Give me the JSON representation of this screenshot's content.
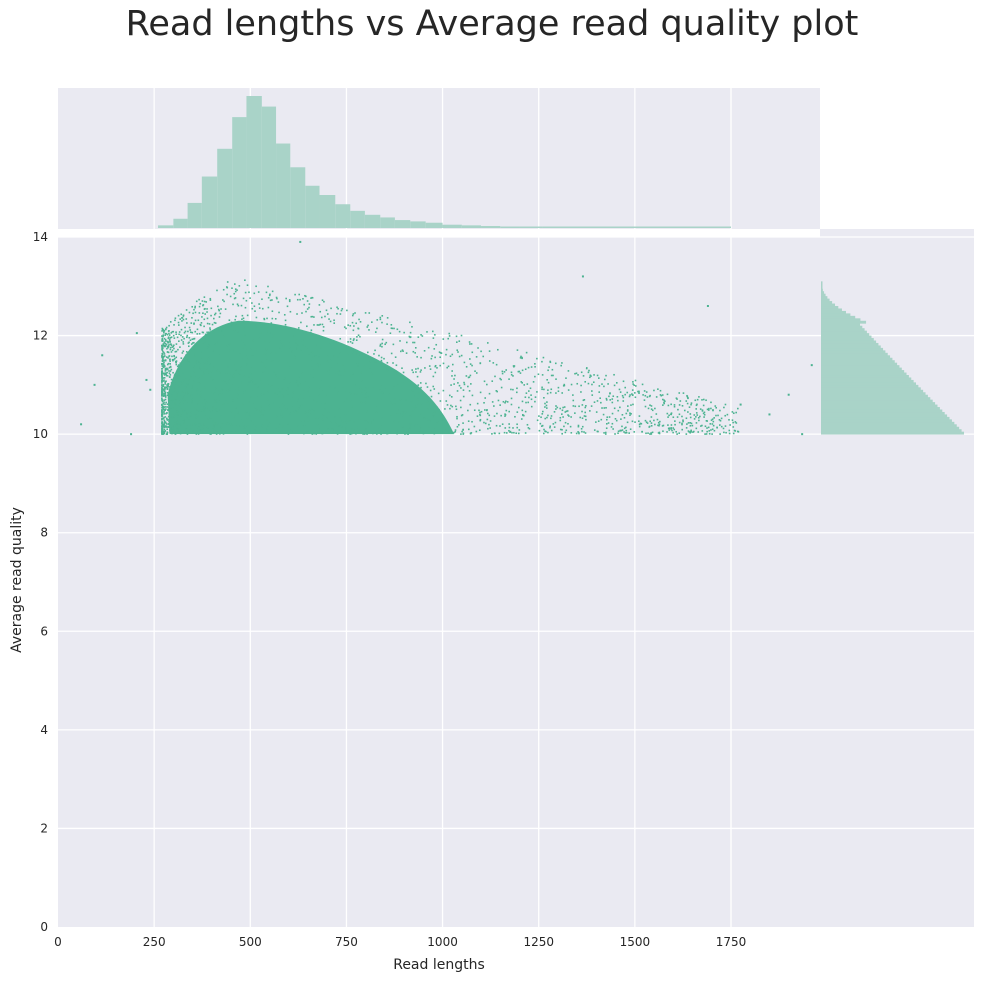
{
  "title": "Read lengths vs Average read quality plot",
  "colors": {
    "background": "#EAEAF2",
    "grid": "#FFFFFF",
    "scatter": "#4CB391",
    "histogram": "#A9D3C8",
    "text": "#262626"
  },
  "chart_data": {
    "type": "scatter",
    "subtype": "jointplot with marginal histograms",
    "title": "Read lengths vs Average read quality plot",
    "xlabel": "Read lengths",
    "ylabel": "Average read quality",
    "xlim": [
      0,
      2390
    ],
    "ylim": [
      0,
      14.4
    ],
    "xticks": [
      0,
      250,
      500,
      750,
      1000,
      1250,
      1500,
      1750
    ],
    "xtick_labels": [
      "0",
      "250",
      "500",
      "750",
      "1000",
      "1250",
      "1500",
      "1750"
    ],
    "yticks": [
      0,
      2,
      4,
      6,
      8,
      10,
      12,
      14
    ],
    "ytick_labels": [
      "0",
      "2",
      "4",
      "6",
      "8",
      "10",
      "12",
      "14"
    ],
    "grid": true,
    "legend": null,
    "scatter_summary": {
      "x_range": [
        60,
        1990
      ],
      "y_range": [
        10.0,
        13.9
      ],
      "dense_core_x": [
        280,
        1000
      ],
      "dense_core_y": [
        10.0,
        12.3
      ],
      "peak_density_x": 470,
      "notes": "Dense cloud of points with quality >= 10; sparse tail to ~1990 bp; isolated outliers at lengths 60-200"
    },
    "top_histogram": {
      "variable": "Read lengths",
      "bin_edges": [
        260,
        300,
        337,
        374,
        414,
        453,
        490,
        530,
        567,
        604,
        643,
        680,
        721,
        760,
        798,
        838,
        876,
        916,
        956,
        1000,
        1050,
        1100,
        1150,
        1200,
        1260,
        1750
      ],
      "relative_heights": [
        0.02,
        0.07,
        0.19,
        0.39,
        0.6,
        0.84,
        1.0,
        0.92,
        0.64,
        0.46,
        0.32,
        0.25,
        0.18,
        0.13,
        0.1,
        0.08,
        0.06,
        0.05,
        0.04,
        0.025,
        0.02,
        0.015,
        0.01,
        0.008,
        0.005
      ]
    },
    "right_histogram": {
      "variable": "Average read quality",
      "range": [
        10.0,
        13.1
      ],
      "shape": "monotonically decreasing from max at ~10.0 to near zero at ~13.1"
    }
  }
}
